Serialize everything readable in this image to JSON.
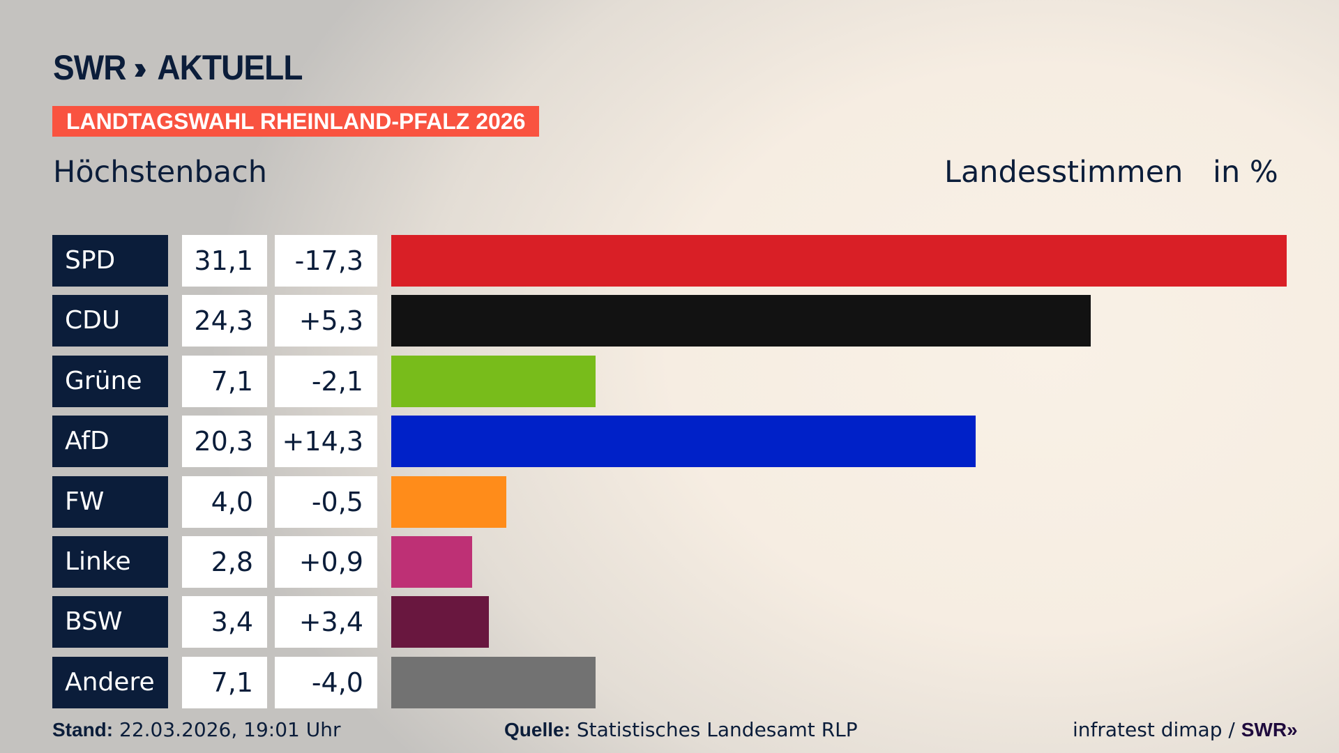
{
  "header": {
    "logo": "SWR AKTUELL",
    "logo_parts": {
      "brand": "SWR",
      "chevrons": "»",
      "suffix": "AKTUELL"
    },
    "banner": "LANDTAGSWAHL RHEINLAND-PFALZ 2026",
    "region": "Höchstenbach",
    "measure": "Landesstimmen",
    "unit": "in %"
  },
  "colors": {
    "accent": "#f95340",
    "navy": "#0b1d3a"
  },
  "chart_data": {
    "type": "bar",
    "orientation": "horizontal",
    "categories": [
      "SPD",
      "CDU",
      "Grüne",
      "AfD",
      "FW",
      "Linke",
      "BSW",
      "Andere"
    ],
    "values": [
      31.1,
      24.3,
      7.1,
      20.3,
      4.0,
      2.8,
      3.4,
      7.1
    ],
    "value_labels": [
      "31,1",
      "24,3",
      "7,1",
      "20,3",
      "4,0",
      "2,8",
      "3,4",
      "7,1"
    ],
    "changes": [
      -17.3,
      5.3,
      -2.1,
      14.3,
      -0.5,
      0.9,
      3.4,
      -4.0
    ],
    "change_labels": [
      "-17,3",
      "+5,3",
      "-2,1",
      "+14,3",
      "-0,5",
      "+0,9",
      "+3,4",
      "-4,0"
    ],
    "colors": [
      "#d91f26",
      "#121212",
      "#78bc1b",
      "#0021c8",
      "#ff8c1a",
      "#be3075",
      "#69173f",
      "#727272"
    ],
    "title": "Höchstenbach",
    "xlabel": "",
    "ylabel": "Landesstimmen in %",
    "grid": false
  },
  "footer": {
    "stand_label": "Stand:",
    "stand_value": "22.03.2026, 19:01 Uhr",
    "source_label": "Quelle:",
    "source_value": "Statistisches Landesamt RLP",
    "credit": "infratest dimap /",
    "credit_brand": "SWR»"
  }
}
